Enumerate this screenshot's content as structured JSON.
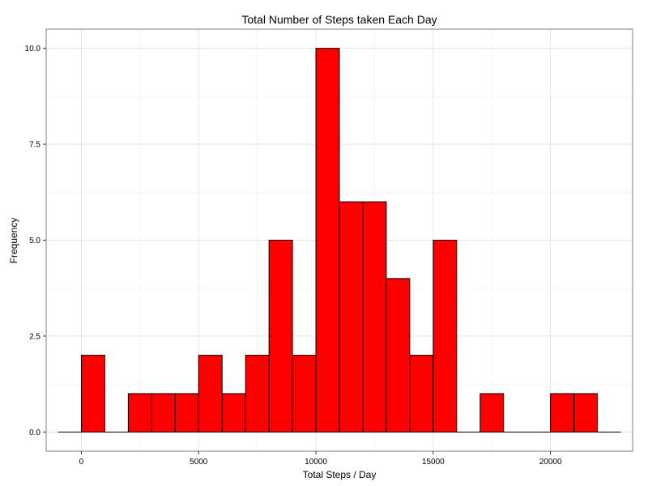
{
  "chart_data": {
    "type": "bar",
    "title": "Total Number of Steps taken Each Day",
    "xlabel": "Total Steps / Day",
    "ylabel": "Frequency",
    "xlim": [
      -1500,
      23500
    ],
    "ylim": [
      -0.5,
      10.5
    ],
    "bin_width": 1000,
    "bins": [
      {
        "start": -1000,
        "count": 0
      },
      {
        "start": 0,
        "count": 2
      },
      {
        "start": 1000,
        "count": 0
      },
      {
        "start": 2000,
        "count": 1
      },
      {
        "start": 3000,
        "count": 1
      },
      {
        "start": 4000,
        "count": 1
      },
      {
        "start": 5000,
        "count": 2
      },
      {
        "start": 6000,
        "count": 1
      },
      {
        "start": 7000,
        "count": 2
      },
      {
        "start": 8000,
        "count": 5
      },
      {
        "start": 9000,
        "count": 2
      },
      {
        "start": 10000,
        "count": 10
      },
      {
        "start": 11000,
        "count": 6
      },
      {
        "start": 12000,
        "count": 6
      },
      {
        "start": 13000,
        "count": 4
      },
      {
        "start": 14000,
        "count": 2
      },
      {
        "start": 15000,
        "count": 5
      },
      {
        "start": 16000,
        "count": 0
      },
      {
        "start": 17000,
        "count": 1
      },
      {
        "start": 18000,
        "count": 0
      },
      {
        "start": 19000,
        "count": 0
      },
      {
        "start": 20000,
        "count": 1
      },
      {
        "start": 21000,
        "count": 1
      },
      {
        "start": 22000,
        "count": 0
      }
    ],
    "x_ticks": [
      0,
      5000,
      10000,
      15000,
      20000
    ],
    "x_tick_labels": [
      "0",
      "5000",
      "10000",
      "15000",
      "20000"
    ],
    "y_ticks": [
      0,
      2.5,
      5,
      7.5,
      10
    ],
    "y_tick_labels": [
      "0.0",
      "2.5",
      "5.0",
      "7.5",
      "10.0"
    ],
    "grid": true,
    "colors": {
      "bar_fill": "#ff0000",
      "bar_stroke": "#000000",
      "grid_major": "#e3e3e3",
      "grid_minor": "#f3f3f3",
      "panel_border": "#7f7f7f"
    }
  }
}
